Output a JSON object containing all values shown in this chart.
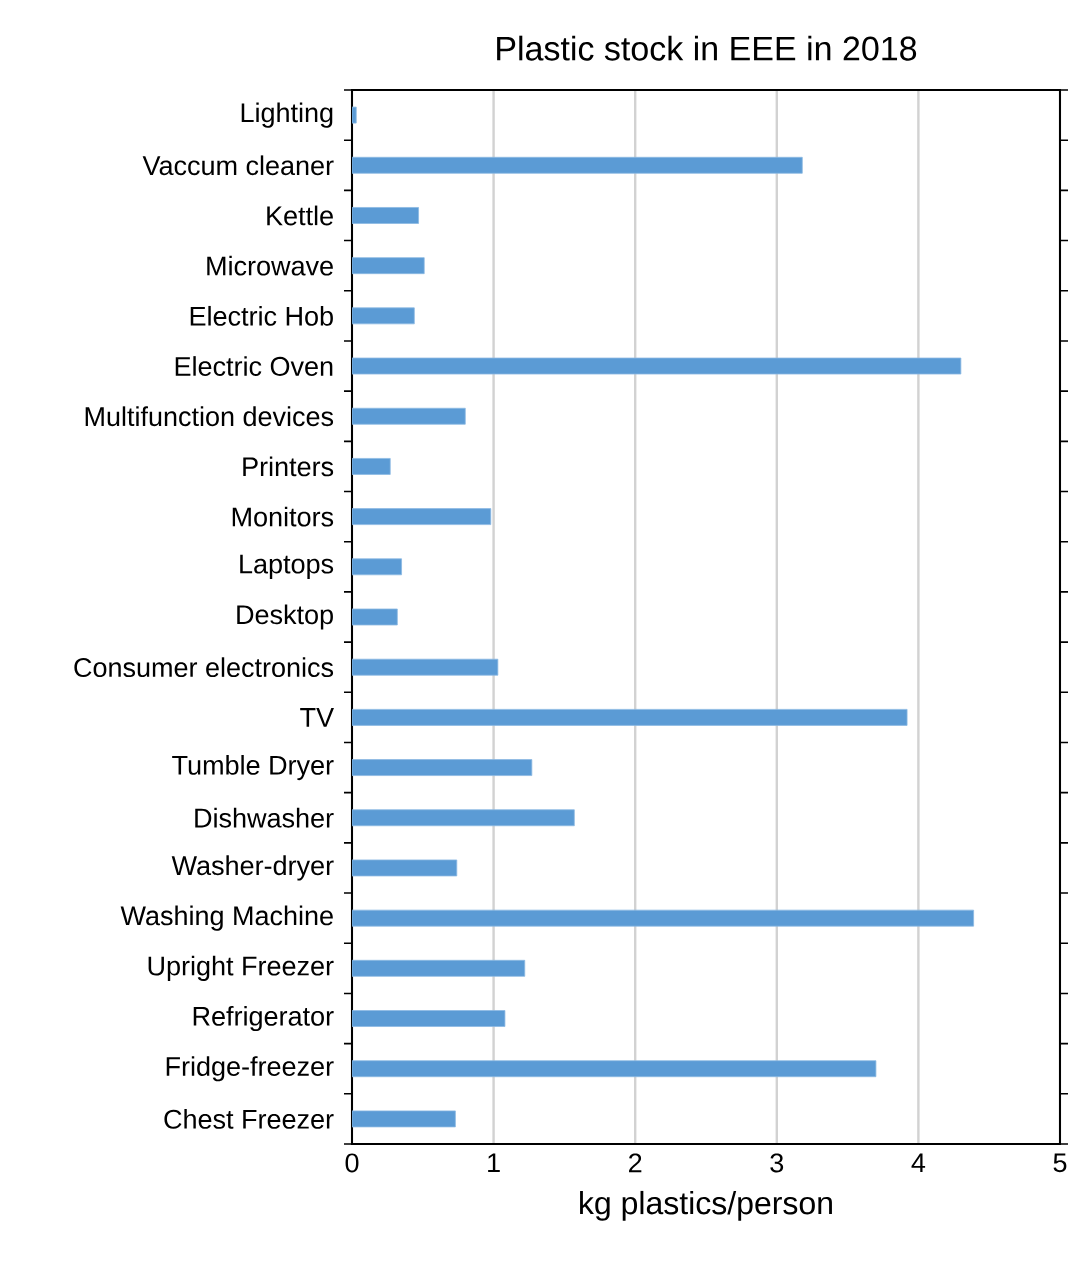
{
  "chart_data": {
    "type": "bar",
    "orientation": "horizontal",
    "title": "Plastic stock in EEE in 2018",
    "xlabel": "kg plastics/person",
    "categories": [
      "Lighting",
      "Vaccum cleaner",
      "Kettle",
      "Microwave",
      "Electric Hob",
      "Electric Oven",
      "Multifunction devices",
      "Printers",
      "Monitors",
      "Laptops",
      "Desktop",
      "Consumer electronics",
      "TV",
      "Tumble Dryer",
      "Dishwasher",
      "Washer-dryer",
      "Washing Machine",
      "Upright Freezer",
      "Refrigerator",
      "Fridge-freezer",
      "Chest Freezer"
    ],
    "values": [
      0.03,
      3.18,
      0.47,
      0.51,
      0.44,
      4.3,
      0.8,
      0.27,
      0.98,
      0.35,
      0.32,
      1.03,
      3.92,
      1.27,
      1.57,
      0.74,
      4.39,
      1.22,
      1.08,
      3.7,
      0.73
    ],
    "color": "#5b9bd5",
    "xlim": [
      0,
      5
    ],
    "xticks": [
      0,
      1,
      2,
      3,
      4,
      5
    ],
    "grid": "x"
  }
}
